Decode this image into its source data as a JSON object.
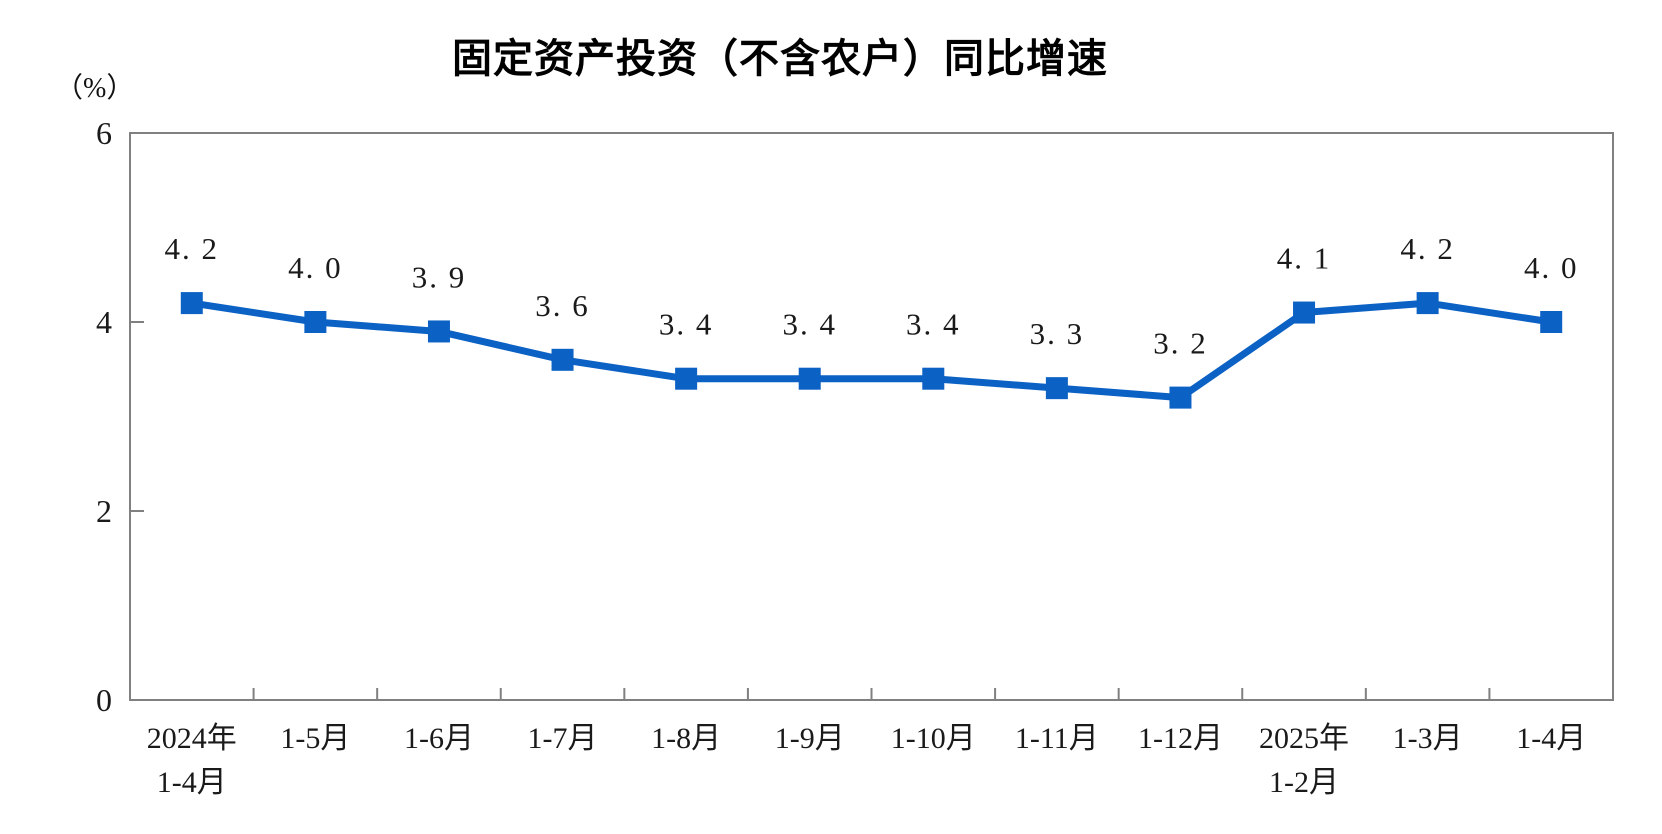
{
  "chart_data": {
    "type": "line",
    "title": "固定资产投资（不含农户）同比增速",
    "unit_label": "（%）",
    "categories": [
      "2024年1-4月",
      "1-5月",
      "1-6月",
      "1-7月",
      "1-8月",
      "1-9月",
      "1-10月",
      "1-11月",
      "1-12月",
      "2025年1-2月",
      "1-3月",
      "1-4月"
    ],
    "x_tick_lines": [
      [
        "2024年",
        "1-4月"
      ],
      [
        "1-5月"
      ],
      [
        "1-6月"
      ],
      [
        "1-7月"
      ],
      [
        "1-8月"
      ],
      [
        "1-9月"
      ],
      [
        "1-10月"
      ],
      [
        "1-11月"
      ],
      [
        "1-12月"
      ],
      [
        "2025年",
        "1-2月"
      ],
      [
        "1-3月"
      ],
      [
        "1-4月"
      ]
    ],
    "series": [
      {
        "name": "固定资产投资（不含农户）同比增速",
        "values": [
          4.2,
          4.0,
          3.9,
          3.6,
          3.4,
          3.4,
          3.4,
          3.3,
          3.2,
          4.1,
          4.2,
          4.0
        ]
      }
    ],
    "data_labels": [
      "4. 2",
      "4. 0",
      "3. 9",
      "3. 6",
      "3. 4",
      "3. 4",
      "3. 4",
      "3. 3",
      "3. 2",
      "4. 1",
      "4. 2",
      "4. 0"
    ],
    "y_tick_labels": [
      "0",
      "2",
      "4",
      "6"
    ],
    "yticks": [
      0,
      2,
      4,
      6
    ],
    "ylim": [
      0,
      6
    ],
    "grid": false,
    "legend": "none",
    "marker": "square",
    "colors": {
      "line": "#0b61c4",
      "axis": "#808080",
      "text": "#1a1a1a",
      "title": "#000000"
    }
  }
}
